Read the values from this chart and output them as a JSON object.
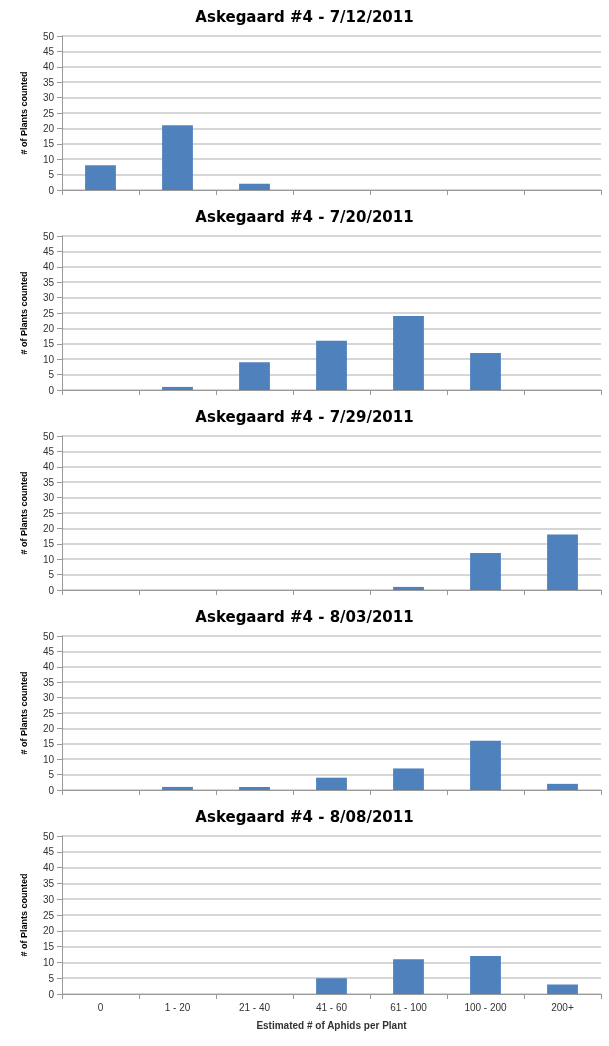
{
  "chart_data": [
    {
      "type": "bar",
      "title": "Askegaard #4 - 7/12/2011",
      "ylabel": "# of Plants counted",
      "categories": [
        null,
        null,
        null,
        null,
        null,
        null,
        null
      ],
      "values": [
        8,
        21,
        2,
        0,
        0,
        0,
        0
      ],
      "color": "#4f81bd",
      "ylim": [
        0,
        50
      ],
      "yticks": [
        0,
        5,
        10,
        15,
        20,
        25,
        30,
        35,
        40,
        45,
        50
      ],
      "grid": "y"
    },
    {
      "type": "bar",
      "title": "Askegaard #4 - 7/20/2011",
      "ylabel": "# of Plants counted",
      "categories": [
        null,
        null,
        null,
        null,
        null,
        null,
        null
      ],
      "values": [
        0,
        1,
        9,
        16,
        24,
        12,
        0
      ],
      "color": "#4f81bd",
      "ylim": [
        0,
        50
      ],
      "yticks": [
        0,
        5,
        10,
        15,
        20,
        25,
        30,
        35,
        40,
        45,
        50
      ],
      "grid": "y"
    },
    {
      "type": "bar",
      "title": "Askegaard #4 - 7/29/2011",
      "ylabel": "# of Plants counted",
      "categories": [
        null,
        null,
        null,
        null,
        null,
        null,
        null
      ],
      "values": [
        0,
        0,
        0,
        0,
        1,
        12,
        18
      ],
      "color": "#4f81bd",
      "ylim": [
        0,
        50
      ],
      "yticks": [
        0,
        5,
        10,
        15,
        20,
        25,
        30,
        35,
        40,
        45,
        50
      ],
      "grid": "y"
    },
    {
      "type": "bar",
      "title": "Askegaard #4 - 8/03/2011",
      "ylabel": "# of Plants counted",
      "categories": [
        null,
        null,
        null,
        null,
        null,
        null,
        null
      ],
      "values": [
        0,
        1,
        1,
        4,
        7,
        16,
        2
      ],
      "color": "#4f81bd",
      "ylim": [
        0,
        50
      ],
      "yticks": [
        0,
        5,
        10,
        15,
        20,
        25,
        30,
        35,
        40,
        45,
        50
      ],
      "grid": "y"
    },
    {
      "type": "bar",
      "title": "Askegaard #4 - 8/08/2011",
      "xlabel": "Estimated # of Aphids per Plant",
      "ylabel": "# of Plants counted",
      "categories": [
        "0",
        "1 - 20",
        "21 - 40",
        "41 - 60",
        "61 - 100",
        "100 - 200",
        "200+"
      ],
      "values": [
        0,
        0,
        0,
        5,
        11,
        12,
        3
      ],
      "color": "#4f81bd",
      "ylim": [
        0,
        50
      ],
      "yticks": [
        0,
        5,
        10,
        15,
        20,
        25,
        30,
        35,
        40,
        45,
        50
      ],
      "grid": "y"
    }
  ]
}
